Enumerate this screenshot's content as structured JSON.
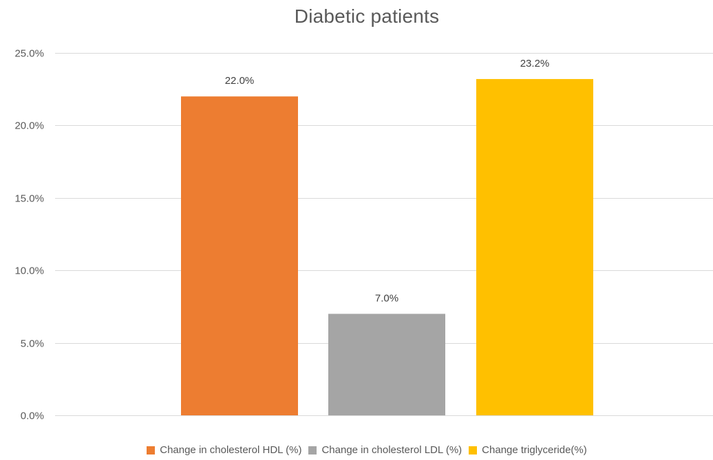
{
  "chart_data": {
    "type": "bar",
    "title": "Diabetic patients",
    "categories": [
      "Change in cholesterol HDL (%)",
      "Change in cholesterol LDL (%)",
      "Change triglyceride(%)"
    ],
    "values": [
      22.0,
      7.0,
      23.2
    ],
    "data_labels": [
      "22.0%",
      "7.0%",
      "23.2%"
    ],
    "colors": [
      "#ED7D31",
      "#A5A5A5",
      "#FFC000"
    ],
    "ylim": [
      0,
      25
    ],
    "yticks": [
      0,
      5,
      10,
      15,
      20,
      25
    ],
    "ytick_labels": [
      "0.0%",
      "5.0%",
      "10.0%",
      "15.0%",
      "20.0%",
      "25.0%"
    ],
    "xlabel": "",
    "ylabel": "",
    "grid": true,
    "legend": {
      "position": "bottom",
      "entries": [
        "Change in cholesterol HDL (%)",
        "Change in cholesterol LDL (%)",
        "Change triglyceride(%)"
      ]
    }
  }
}
